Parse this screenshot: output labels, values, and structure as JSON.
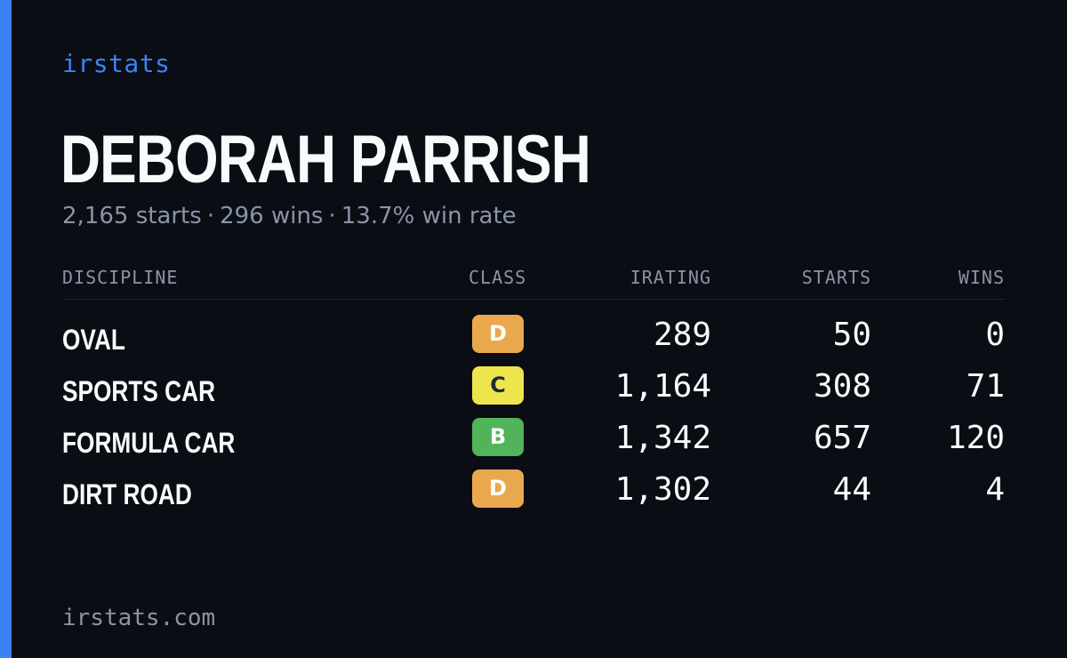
{
  "brand": "irstats",
  "driver": {
    "name": "DEBORAH PARRISH",
    "starts": "2,165 starts",
    "wins": "296 wins",
    "win_rate": "13.7% win rate",
    "separator": "·"
  },
  "table": {
    "headers": {
      "discipline": "DISCIPLINE",
      "class": "CLASS",
      "irating": "IRATING",
      "starts": "STARTS",
      "wins": "WINS"
    },
    "rows": [
      {
        "discipline": "OVAL",
        "class": "D",
        "class_bg": "#eaa84e",
        "class_fg": "#ffffff",
        "irating": "289",
        "starts": "50",
        "wins": "0"
      },
      {
        "discipline": "SPORTS CAR",
        "class": "C",
        "class_bg": "#ede54e",
        "class_fg": "#1f2937",
        "irating": "1,164",
        "starts": "308",
        "wins": "71"
      },
      {
        "discipline": "FORMULA CAR",
        "class": "B",
        "class_bg": "#52b45a",
        "class_fg": "#ffffff",
        "irating": "1,342",
        "starts": "657",
        "wins": "120"
      },
      {
        "discipline": "DIRT ROAD",
        "class": "D",
        "class_bg": "#eaa84e",
        "class_fg": "#ffffff",
        "irating": "1,302",
        "starts": "44",
        "wins": "4"
      }
    ]
  },
  "footer": "irstats.com",
  "colors": {
    "background": "#0a0d14",
    "accent": "#3b82f6",
    "text": "#f8fafc",
    "muted": "#8a94a6"
  }
}
